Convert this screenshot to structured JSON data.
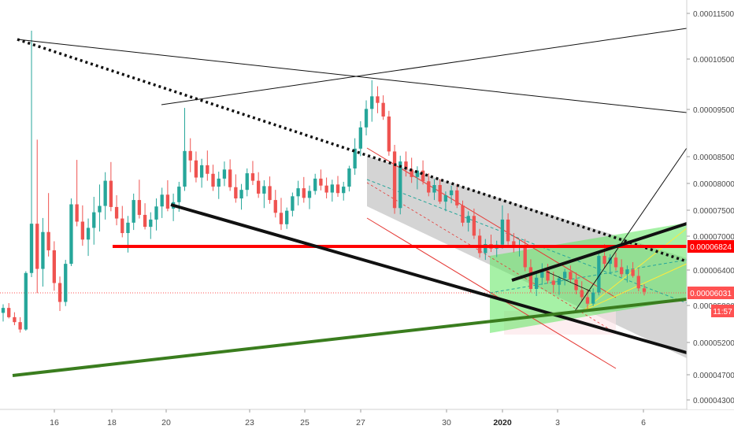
{
  "chart_data": {
    "type": "candlestick",
    "x_tick_labels": [
      "16",
      "18",
      "20",
      "23",
      "25",
      "27",
      "30",
      "2020",
      "3",
      "6"
    ],
    "y_tick_labels": [
      "0.00011500",
      "0.00010500",
      "0.00009500",
      "0.00008500",
      "0.00008000",
      "0.00007500",
      "0.00007000",
      "0.00006400",
      "0.00005800",
      "0.00005200",
      "0.00004700",
      "0.00004300"
    ],
    "price_tags": [
      {
        "label": "0.00006824",
        "color": "#ff0000"
      },
      {
        "label": "0.00006031",
        "color": "#ff5252"
      },
      {
        "label": "11:57",
        "color": "#ff5252"
      }
    ],
    "candles": [
      [
        56.8,
        58.2,
        55.4,
        57.6
      ],
      [
        57.6,
        58.4,
        55.9,
        56.1
      ],
      [
        56.1,
        56.9,
        54.8,
        55.3
      ],
      [
        55.3,
        56.1,
        53.6,
        54.1
      ],
      [
        54.1,
        63.8,
        53.9,
        63.5
      ],
      [
        63.5,
        111.2,
        62.8,
        72.4
      ],
      [
        72.4,
        88.6,
        60.1,
        64.2
      ],
      [
        64.2,
        73.5,
        61.2,
        70.8
      ],
      [
        70.8,
        78.2,
        66.4,
        67.5
      ],
      [
        67.5,
        69.1,
        60.5,
        61.8
      ],
      [
        61.8,
        62.9,
        57.1,
        58.6
      ],
      [
        58.6,
        65.8,
        57.9,
        65.1
      ],
      [
        65.1,
        77.2,
        64.7,
        76.1
      ],
      [
        76.1,
        84.4,
        71.9,
        72.8
      ],
      [
        72.8,
        75.9,
        68.3,
        69.4
      ],
      [
        69.4,
        73.4,
        66.5,
        71.6
      ],
      [
        71.6,
        77.5,
        68.5,
        74.6
      ],
      [
        74.6,
        79.8,
        70.9,
        75.8
      ],
      [
        75.8,
        82.1,
        73.2,
        80.5
      ],
      [
        80.5,
        84.0,
        74.8,
        75.6
      ],
      [
        75.6,
        77.8,
        72.1,
        73.4
      ],
      [
        73.4,
        75.8,
        69.8,
        70.6
      ],
      [
        70.6,
        73.9,
        67.1,
        72.6
      ],
      [
        72.6,
        78.1,
        71.2,
        76.9
      ],
      [
        76.9,
        80.7,
        73.4,
        74.1
      ],
      [
        74.1,
        76.3,
        71.3,
        71.8
      ],
      [
        71.8,
        74.6,
        69.5,
        73.2
      ],
      [
        73.2,
        77.2,
        71.1,
        75.7
      ],
      [
        75.7,
        79.2,
        73.5,
        77.9
      ],
      [
        77.9,
        80.6,
        74.8,
        75.3
      ],
      [
        75.3,
        78.1,
        72.9,
        76.5
      ],
      [
        76.5,
        80.3,
        74.7,
        79.4
      ],
      [
        79.4,
        95.3,
        78.6,
        86.2
      ],
      [
        86.2,
        88.9,
        82.1,
        84.3
      ],
      [
        84.3,
        86.1,
        80.2,
        81.1
      ],
      [
        81.1,
        84.6,
        79.2,
        83.4
      ],
      [
        83.4,
        86.3,
        80.5,
        81.8
      ],
      [
        81.8,
        83.5,
        78.6,
        79.4
      ],
      [
        79.4,
        82.2,
        77.1,
        80.9
      ],
      [
        80.9,
        84.1,
        79.5,
        82.6
      ],
      [
        82.6,
        84.5,
        78.6,
        79.3
      ],
      [
        79.3,
        81.7,
        76.4,
        77.2
      ],
      [
        77.2,
        79.9,
        75.1,
        78.8
      ],
      [
        78.8,
        82.8,
        77.6,
        81.9
      ],
      [
        81.9,
        84.2,
        79.7,
        80.5
      ],
      [
        80.5,
        82.1,
        77.3,
        78.1
      ],
      [
        78.1,
        80.6,
        75.4,
        79.5
      ],
      [
        79.5,
        81.3,
        76.2,
        76.9
      ],
      [
        76.9,
        78.8,
        73.6,
        74.5
      ],
      [
        74.5,
        77.3,
        71.2,
        72.3
      ],
      [
        72.3,
        75.5,
        71.4,
        74.9
      ],
      [
        74.9,
        78.3,
        73.8,
        77.6
      ],
      [
        77.6,
        80.5,
        75.9,
        79.1
      ],
      [
        79.1,
        81.2,
        76.4,
        77.3
      ],
      [
        77.3,
        79.6,
        75.2,
        78.6
      ],
      [
        78.6,
        81.8,
        77.9,
        80.9
      ],
      [
        80.9,
        82.6,
        78.7,
        79.6
      ],
      [
        79.6,
        81.1,
        77.2,
        78.3
      ],
      [
        78.3,
        80.7,
        76.6,
        79.8
      ],
      [
        79.8,
        81.4,
        77.5,
        78.2
      ],
      [
        78.2,
        80.3,
        76.8,
        79.4
      ],
      [
        79.4,
        83.3,
        78.5,
        82.8
      ],
      [
        82.8,
        88.9,
        81.6,
        86.7
      ],
      [
        86.7,
        92.5,
        85.1,
        91.2
      ],
      [
        91.2,
        96.8,
        89.5,
        95.1
      ],
      [
        95.1,
        100.8,
        92.4,
        97.6
      ],
      [
        97.6,
        99.6,
        94.2,
        96.3
      ],
      [
        96.3,
        97.8,
        92.8,
        93.5
      ],
      [
        93.5,
        94.7,
        85.2,
        86.1
      ],
      [
        86.1,
        87.5,
        74.3,
        75.4
      ],
      [
        75.4,
        85.2,
        74.2,
        84.1
      ],
      [
        84.1,
        86.1,
        81.3,
        82.6
      ],
      [
        82.6,
        84.8,
        80.1,
        81.2
      ],
      [
        81.2,
        83.2,
        78.9,
        82.4
      ],
      [
        82.4,
        84.3,
        79.8,
        80.4
      ],
      [
        80.4,
        81.9,
        77.6,
        78.3
      ],
      [
        78.3,
        80.8,
        76.9,
        79.7
      ],
      [
        79.7,
        80.8,
        76.2,
        76.6
      ],
      [
        76.6,
        78.5,
        74.8,
        77.8
      ],
      [
        77.8,
        79.6,
        76.3,
        78.7
      ],
      [
        78.7,
        79.9,
        75.4,
        75.9
      ],
      [
        75.9,
        76.8,
        71.9,
        72.6
      ],
      [
        72.6,
        74.8,
        70.9,
        73.9
      ],
      [
        73.9,
        75.3,
        69.5,
        70.1
      ],
      [
        70.1,
        71.4,
        66.2,
        67.0
      ],
      [
        67.0,
        69.5,
        65.8,
        68.6
      ],
      [
        68.6,
        70.3,
        67.2,
        67.8
      ],
      [
        67.8,
        69.2,
        66.3,
        68.5
      ],
      [
        68.5,
        75.9,
        67.8,
        73.2
      ],
      [
        73.2,
        74.4,
        68.5,
        69.1
      ],
      [
        69.1,
        70.6,
        67.1,
        67.9
      ],
      [
        67.9,
        69.4,
        66.4,
        68.4
      ],
      [
        68.4,
        69.5,
        63.8,
        64.5
      ],
      [
        64.5,
        65.9,
        60.2,
        60.8
      ],
      [
        60.8,
        63.4,
        59.6,
        62.7
      ],
      [
        62.7,
        65.2,
        61.5,
        63.9
      ],
      [
        63.9,
        65.1,
        61.7,
        62.2
      ],
      [
        62.2,
        63.7,
        60.1,
        61.5
      ],
      [
        61.5,
        63.0,
        59.8,
        62.6
      ],
      [
        62.6,
        64.2,
        61.4,
        63.7
      ],
      [
        63.7,
        64.8,
        61.8,
        62.4
      ],
      [
        62.4,
        63.6,
        59.9,
        60.6
      ],
      [
        60.6,
        62.1,
        58.7,
        59.4
      ],
      [
        59.4,
        60.8,
        57.5,
        58.3
      ],
      [
        58.3,
        60.9,
        57.9,
        60.2
      ],
      [
        60.2,
        67.4,
        59.7,
        66.5
      ],
      [
        66.5,
        68.6,
        64.3,
        65.1
      ],
      [
        65.1,
        66.8,
        63.6,
        66.2
      ],
      [
        66.2,
        67.1,
        63.9,
        64.5
      ],
      [
        64.5,
        65.9,
        62.8,
        63.3
      ],
      [
        63.3,
        64.8,
        61.9,
        64.1
      ],
      [
        64.1,
        65.4,
        62.7,
        63.0
      ],
      [
        63.0,
        64.2,
        60.4,
        60.9
      ],
      [
        60.9,
        61.6,
        59.7,
        60.3
      ]
    ]
  }
}
